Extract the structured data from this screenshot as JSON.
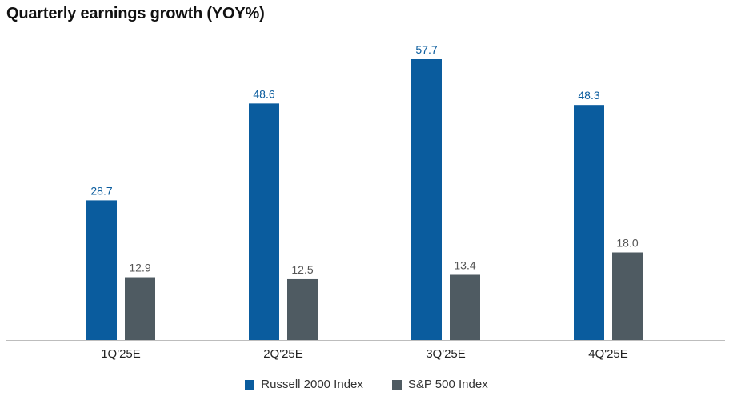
{
  "chart_data": {
    "type": "bar",
    "title": "Quarterly earnings growth (YOY%)",
    "categories": [
      "1Q'25E",
      "2Q'25E",
      "3Q'25E",
      "4Q'25E"
    ],
    "series": [
      {
        "name": "Russell 2000 Index",
        "values": [
          28.7,
          48.6,
          57.7,
          48.3
        ],
        "color": "#0a5c9e"
      },
      {
        "name": "S&P 500 Index",
        "values": [
          12.9,
          12.5,
          13.4,
          18.0
        ],
        "color": "#4f5b62"
      }
    ],
    "value_label_colors": [
      "#0a5c9e",
      "#555555"
    ],
    "xlabel": "",
    "ylabel": "",
    "ylim": [
      0,
      57.7
    ],
    "legend_position": "bottom-center",
    "grid": false
  }
}
